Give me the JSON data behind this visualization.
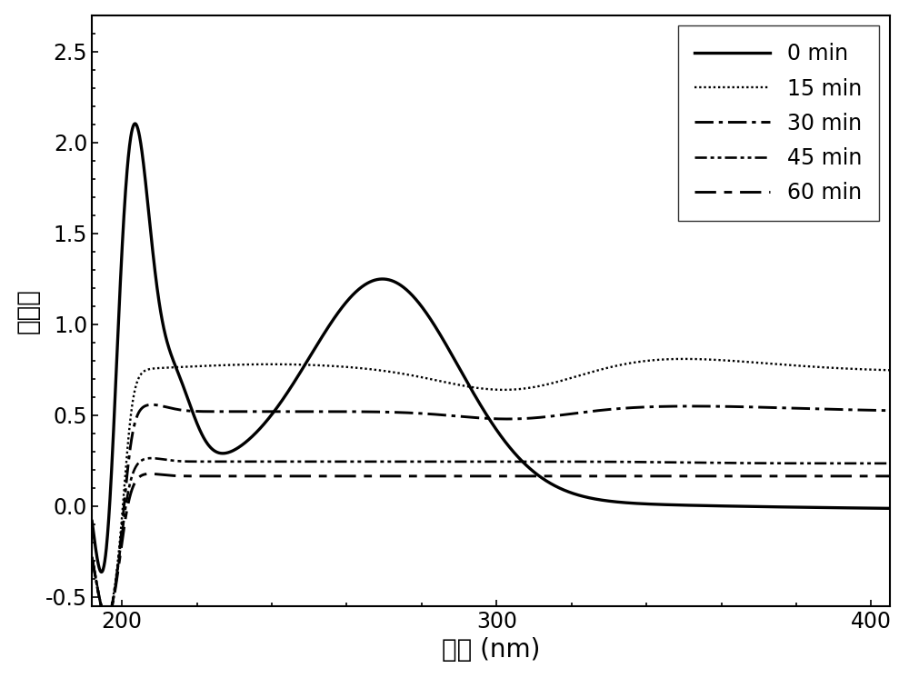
{
  "xlabel": "波长 (nm)",
  "ylabel": "吸光度",
  "xlim": [
    192,
    405
  ],
  "ylim": [
    -0.55,
    2.7
  ],
  "xticks": [
    200,
    300,
    400
  ],
  "yticks": [
    -0.5,
    0.0,
    0.5,
    1.0,
    1.5,
    2.0,
    2.5
  ],
  "legend_labels": [
    "0 min",
    "15 min",
    "30 min",
    "45 min",
    "60 min"
  ],
  "color": "#000000",
  "background_color": "#ffffff",
  "font_size_labels": 20,
  "font_size_ticks": 17,
  "font_size_legend": 17,
  "legend_loc": "upper right"
}
